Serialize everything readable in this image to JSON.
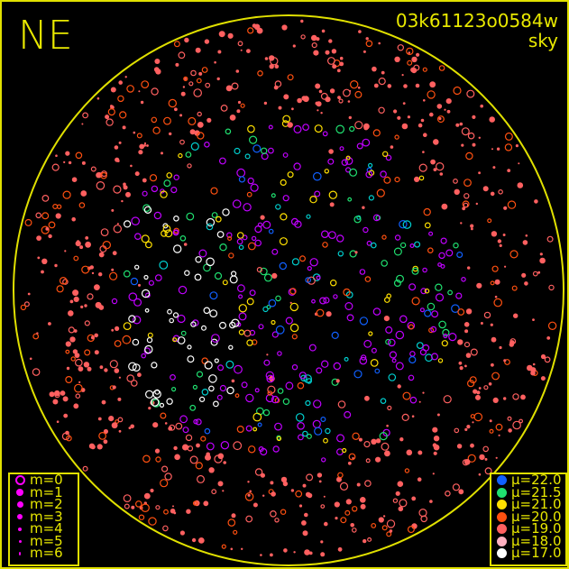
{
  "header": {
    "direction": "NE",
    "frame_id": "03k61123o0584w",
    "mode": "sky"
  },
  "magnitude_legend": {
    "symbol_color": "#ff00ff",
    "items": [
      {
        "label": "m=0",
        "style": "ring"
      },
      {
        "label": "m=1",
        "style": "dot"
      },
      {
        "label": "m=2",
        "style": "dot"
      },
      {
        "label": "m=3",
        "style": "dot"
      },
      {
        "label": "m=4",
        "style": "dot"
      },
      {
        "label": "m=5",
        "style": "dot"
      },
      {
        "label": "m=6",
        "style": "dot"
      }
    ]
  },
  "sky_brightness_legend": {
    "items": [
      {
        "label": "μ=22.0",
        "color": "#1060ff"
      },
      {
        "label": "μ=21.5",
        "color": "#20e070"
      },
      {
        "label": "μ=21.0",
        "color": "#ffe000"
      },
      {
        "label": "μ=20.0",
        "color": "#ff5010"
      },
      {
        "label": "μ=19.0",
        "color": "#ff6060"
      },
      {
        "label": "μ=18.0",
        "color": "#ffb0c0"
      },
      {
        "label": "μ=17.0",
        "color": "#ffffff"
      }
    ]
  },
  "horizon_color": "#e0e000"
}
